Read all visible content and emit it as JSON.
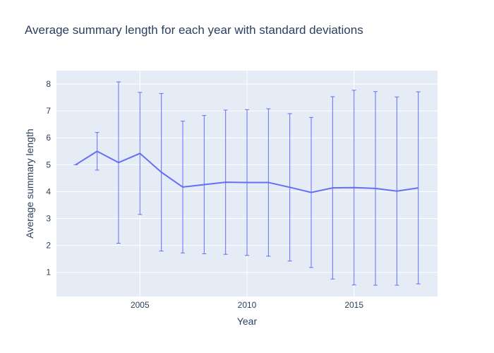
{
  "chart_data": {
    "type": "line",
    "title": "Average summary length for each year with standard deviations",
    "xlabel": "Year",
    "ylabel": "Average summary length",
    "xlim": [
      2001.1,
      2018.9
    ],
    "ylim": [
      0.1,
      8.5
    ],
    "xticks": [
      2005,
      2010,
      2015
    ],
    "yticks": [
      1,
      2,
      3,
      4,
      5,
      6,
      7,
      8
    ],
    "grid": true,
    "colors": {
      "line": "#636efa",
      "plot_bg": "#e5ecf6",
      "grid": "#ffffff",
      "text": "#2a3f5f"
    },
    "series": [
      {
        "x": [
          2002,
          2003,
          2004,
          2005,
          2006,
          2007,
          2008,
          2009,
          2010,
          2011,
          2012,
          2013,
          2014,
          2015,
          2016,
          2017,
          2018
        ],
        "y": [
          5.0,
          5.5,
          5.08,
          5.42,
          4.72,
          4.17,
          4.26,
          4.35,
          4.34,
          4.34,
          4.16,
          3.97,
          4.14,
          4.15,
          4.12,
          4.02,
          4.14
        ],
        "error": [
          0.0,
          0.7,
          3.0,
          2.27,
          2.93,
          2.45,
          2.57,
          2.68,
          2.71,
          2.74,
          2.74,
          2.79,
          3.39,
          3.62,
          3.6,
          3.5,
          3.57
        ]
      }
    ]
  }
}
